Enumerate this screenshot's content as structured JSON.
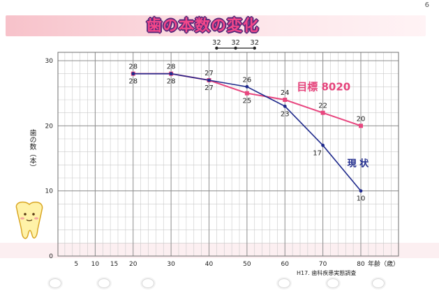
{
  "page_number": "6",
  "title": "歯の本数の変化",
  "source_note": "H17. 歯科疾患実態調査",
  "colors": {
    "target_series": "#e8467f",
    "current_series": "#1f2a8c",
    "grid_major": "#8d8d8d",
    "grid_minor": "#c9c9c9",
    "title_band": "#f7c2ca",
    "title_fill": "#f2478a"
  },
  "chart_data": {
    "type": "line",
    "title": "歯の本数の変化",
    "xlabel": "年齢（歳）",
    "x_unit_label": "年齢（歳）",
    "ylabel": "歯の数（本）",
    "xlim": [
      0,
      80
    ],
    "ylim": [
      0,
      30
    ],
    "x_ticks": [
      5,
      10,
      15,
      20,
      30,
      40,
      50,
      60,
      70,
      80
    ],
    "y_ticks": [
      0,
      10,
      20,
      30
    ],
    "grid": true,
    "reference_points": {
      "x": [
        42,
        47,
        52
      ],
      "labels": [
        "32",
        "32",
        "32"
      ],
      "y": 32
    },
    "series": [
      {
        "name": "目標 8020",
        "color": "#e8467f",
        "marker": "square",
        "x": [
          20,
          30,
          40,
          50,
          60,
          70,
          80
        ],
        "y": [
          28,
          28,
          27,
          25,
          24,
          22,
          20
        ],
        "labels": [
          "28",
          "28",
          "27",
          "25",
          "24",
          "22",
          "20"
        ]
      },
      {
        "name": "現 状",
        "color": "#1f2a8c",
        "marker": "circle",
        "x": [
          20,
          30,
          40,
          50,
          60,
          70,
          80
        ],
        "y": [
          28,
          28,
          27,
          26,
          23,
          17,
          10
        ],
        "labels": [
          "28",
          "28",
          "27",
          "26",
          "23",
          "17",
          "10"
        ]
      }
    ]
  }
}
